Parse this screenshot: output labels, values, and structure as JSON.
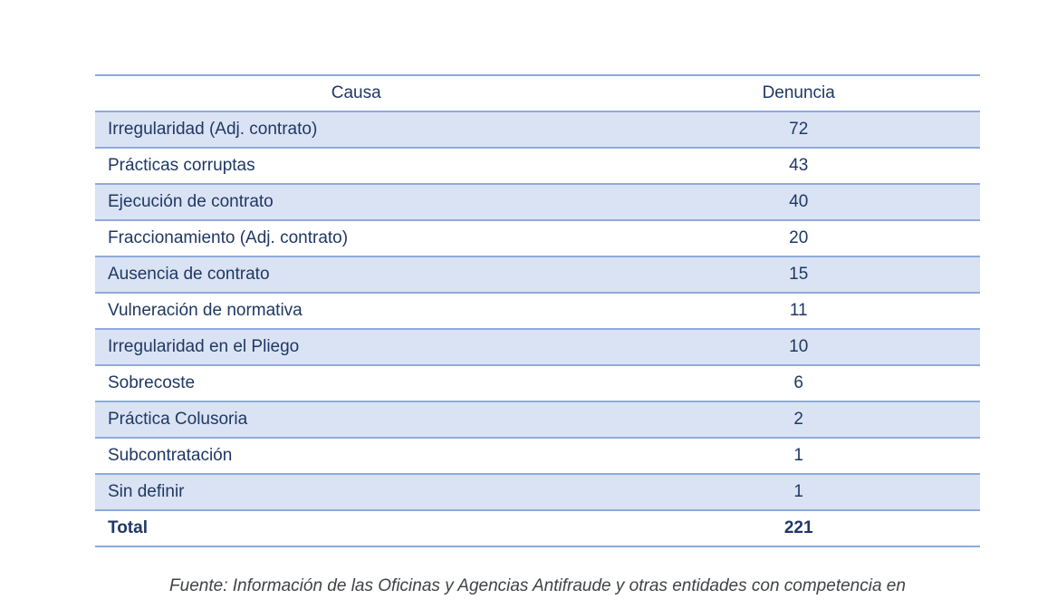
{
  "colors": {
    "stripe": "#DAE3F4",
    "border": "#8FAADC",
    "text": "#1F3864",
    "footer_text": "#3F4247"
  },
  "table": {
    "columns": {
      "causa": "Causa",
      "denuncia": "Denuncia"
    },
    "rows": [
      {
        "causa": "Irregularidad (Adj. contrato)",
        "denuncia": "72"
      },
      {
        "causa": "Prácticas corruptas",
        "denuncia": "43"
      },
      {
        "causa": "Ejecución de contrato",
        "denuncia": "40"
      },
      {
        "causa": "Fraccionamiento (Adj. contrato)",
        "denuncia": "20"
      },
      {
        "causa": "Ausencia de contrato",
        "denuncia": "15"
      },
      {
        "causa": "Vulneración de normativa",
        "denuncia": "11"
      },
      {
        "causa": "Irregularidad en el Pliego",
        "denuncia": "10"
      },
      {
        "causa": "Sobrecoste",
        "denuncia": "6"
      },
      {
        "causa": "Práctica Colusoria",
        "denuncia": "2"
      },
      {
        "causa": "Subcontratación",
        "denuncia": "1"
      },
      {
        "causa": "Sin definir",
        "denuncia": "1"
      }
    ],
    "total": {
      "label": "Total",
      "value": "221"
    }
  },
  "chart_data": {
    "type": "table",
    "categories": [
      "Irregularidad (Adj. contrato)",
      "Prácticas corruptas",
      "Ejecución de contrato",
      "Fraccionamiento (Adj. contrato)",
      "Ausencia de contrato",
      "Vulneración de normativa",
      "Irregularidad en el Pliego",
      "Sobrecoste",
      "Práctica Colusoria",
      "Subcontratación",
      "Sin definir"
    ],
    "values": [
      72,
      43,
      40,
      20,
      15,
      11,
      10,
      6,
      2,
      1,
      1
    ],
    "total": 221,
    "columns": [
      "Causa",
      "Denuncia"
    ]
  },
  "footer": {
    "source": "Fuente: Información de las Oficinas y Agencias Antifraude y otras entidades con competencia en"
  }
}
